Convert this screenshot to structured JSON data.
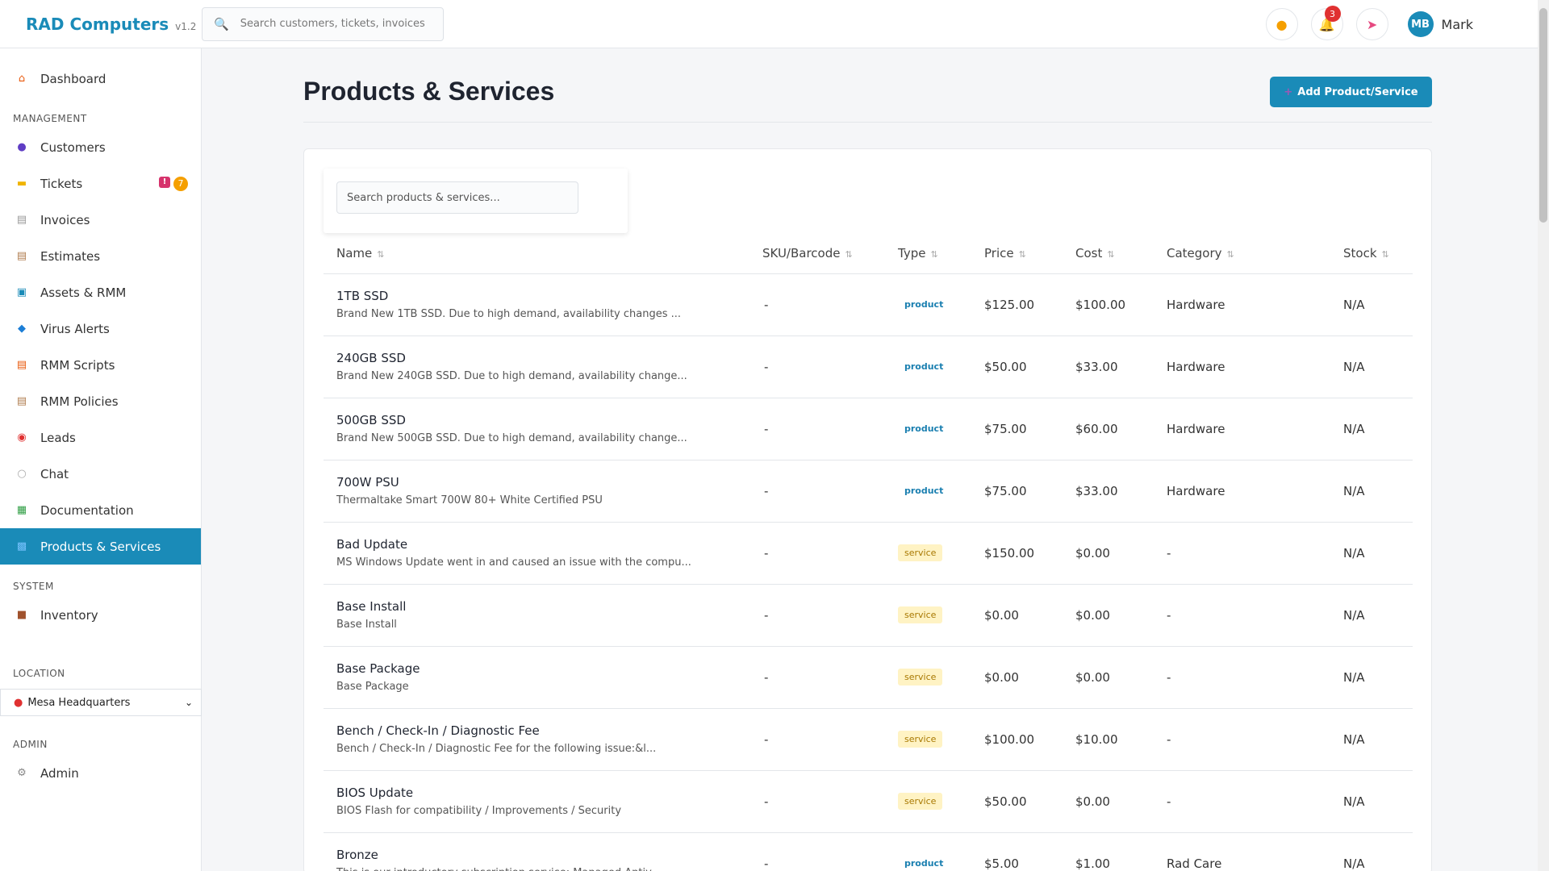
{
  "header": {
    "brand": "RAD Computers",
    "version": "v1.2",
    "search_placeholder": "Search customers, tickets, invoices...",
    "notification_count": "3",
    "user_initials": "MB",
    "user_name": "Mark"
  },
  "sidebar": {
    "dashboard": "Dashboard",
    "management_title": "MANAGEMENT",
    "management_items": [
      {
        "label": "Customers",
        "icon": "users-icon"
      },
      {
        "label": "Tickets",
        "icon": "ticket-icon",
        "badge_alert": "!",
        "badge_count": "7"
      },
      {
        "label": "Invoices",
        "icon": "invoice-icon"
      },
      {
        "label": "Estimates",
        "icon": "clipboard-icon"
      },
      {
        "label": "Assets & RMM",
        "icon": "monitor-icon"
      },
      {
        "label": "Virus Alerts",
        "icon": "shield-icon"
      },
      {
        "label": "RMM Scripts",
        "icon": "scroll-icon"
      },
      {
        "label": "RMM Policies",
        "icon": "clipboard-icon"
      },
      {
        "label": "Leads",
        "icon": "target-icon"
      },
      {
        "label": "Chat",
        "icon": "chat-icon"
      },
      {
        "label": "Documentation",
        "icon": "books-icon"
      },
      {
        "label": "Products & Services",
        "icon": "products-icon",
        "active": true
      }
    ],
    "system_title": "SYSTEM",
    "inventory": "Inventory",
    "location_title": "LOCATION",
    "location_value": "Mesa Headquarters",
    "admin_title": "ADMIN",
    "admin": "Admin"
  },
  "main": {
    "title": "Products & Services",
    "add_button": "Add Product/Service",
    "search_placeholder": "Search products & services...",
    "columns": [
      "Name",
      "SKU/Barcode",
      "Type",
      "Price",
      "Cost",
      "Category",
      "Stock"
    ],
    "rows": [
      {
        "name": "1TB SSD",
        "desc": "Brand New 1TB SSD. Due to high demand, availability changes ...",
        "sku": "-",
        "type": "product",
        "price": "$125.00",
        "cost": "$100.00",
        "category": "Hardware",
        "stock": "N/A"
      },
      {
        "name": "240GB SSD",
        "desc": "Brand New 240GB SSD. Due to high demand, availability change...",
        "sku": "-",
        "type": "product",
        "price": "$50.00",
        "cost": "$33.00",
        "category": "Hardware",
        "stock": "N/A"
      },
      {
        "name": "500GB SSD",
        "desc": "Brand New 500GB SSD. Due to high demand, availability change...",
        "sku": "-",
        "type": "product",
        "price": "$75.00",
        "cost": "$60.00",
        "category": "Hardware",
        "stock": "N/A"
      },
      {
        "name": "700W PSU",
        "desc": "Thermaltake Smart 700W 80+ White Certified PSU",
        "sku": "-",
        "type": "product",
        "price": "$75.00",
        "cost": "$33.00",
        "category": "Hardware",
        "stock": "N/A"
      },
      {
        "name": "Bad Update",
        "desc": "MS Windows Update went in and caused an issue with the compu...",
        "sku": "-",
        "type": "service",
        "price": "$150.00",
        "cost": "$0.00",
        "category": "-",
        "stock": "N/A"
      },
      {
        "name": "Base Install",
        "desc": "Base Install",
        "sku": "-",
        "type": "service",
        "price": "$0.00",
        "cost": "$0.00",
        "category": "-",
        "stock": "N/A"
      },
      {
        "name": "Base Package",
        "desc": "Base Package",
        "sku": "-",
        "type": "service",
        "price": "$0.00",
        "cost": "$0.00",
        "category": "-",
        "stock": "N/A"
      },
      {
        "name": "Bench / Check-In / Diagnostic Fee",
        "desc": "Bench / Check-In / Diagnostic Fee for the following issue:&l...",
        "sku": "-",
        "type": "service",
        "price": "$100.00",
        "cost": "$10.00",
        "category": "-",
        "stock": "N/A"
      },
      {
        "name": "BIOS Update",
        "desc": "BIOS Flash for compatibility / Improvements / Security",
        "sku": "-",
        "type": "service",
        "price": "$50.00",
        "cost": "$0.00",
        "category": "-",
        "stock": "N/A"
      },
      {
        "name": "Bronze",
        "desc": "This is our introductory subscription service: Managed Antiv...",
        "sku": "-",
        "type": "product",
        "price": "$5.00",
        "cost": "$1.00",
        "category": "Rad Care",
        "stock": "N/A"
      }
    ]
  }
}
